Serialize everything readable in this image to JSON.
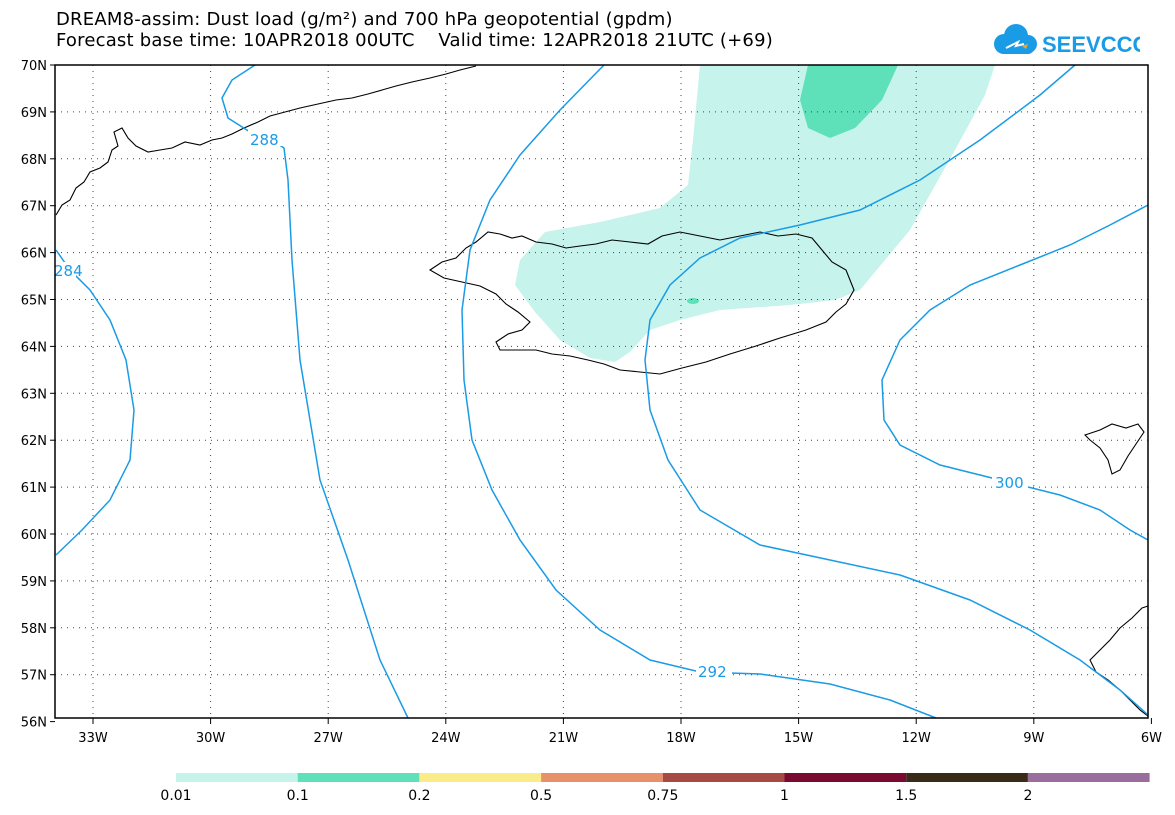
{
  "header": {
    "line1": "DREAM8-assim: Dust load (g/m²) and 700 hPa geopotential (gpdm)",
    "line2": "Forecast base time: 10APR2018 00UTC    Valid time: 12APR2018 21UTC (+69)"
  },
  "logo": {
    "text": "SEEVCCC",
    "color": "#1a9be6",
    "accent": "#f5a623"
  },
  "map": {
    "lon_ticks": [
      "33W",
      "30W",
      "27W",
      "24W",
      "21W",
      "18W",
      "15W",
      "12W",
      "9W",
      "6W"
    ],
    "lat_ticks": [
      "70N",
      "69N",
      "68N",
      "67N",
      "66N",
      "65N",
      "64N",
      "63N",
      "62N",
      "61N",
      "60N",
      "59N",
      "58N",
      "57N",
      "56N"
    ],
    "contour_labels": [
      "288",
      "284",
      "292",
      "300"
    ],
    "contour_color": "#1a9be6"
  },
  "legend": {
    "colors": [
      "#c6f3ec",
      "#5ee0b8",
      "#fbec8a",
      "#e8906a",
      "#a84a44",
      "#7a0a30",
      "#3a2a18",
      "#9a6e9c"
    ],
    "labels": [
      "0.01",
      "0.1",
      "0.2",
      "0.5",
      "0.75",
      "1",
      "1.5",
      "2"
    ]
  }
}
